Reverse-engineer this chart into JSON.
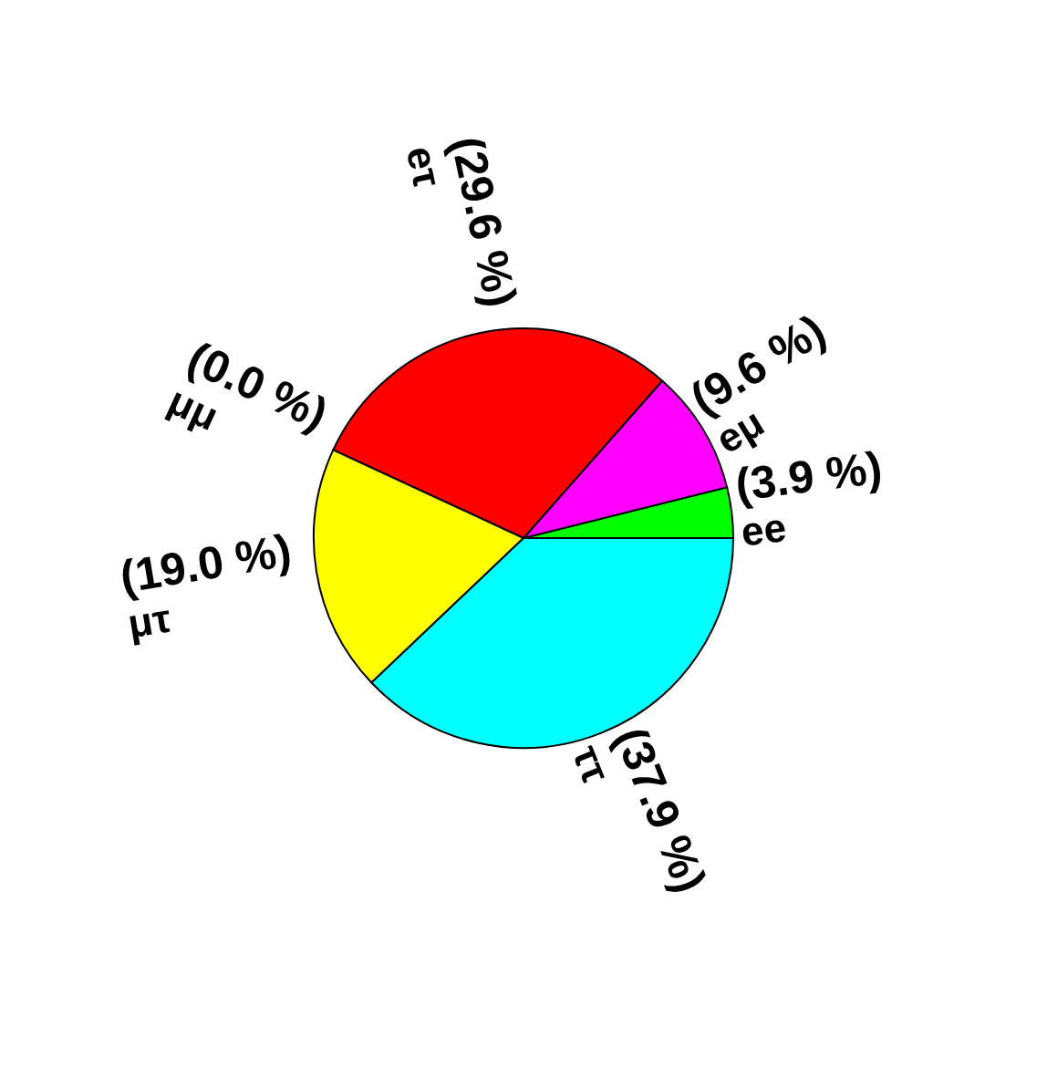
{
  "chart_data": {
    "type": "pie",
    "categories": [
      "ee",
      "eμ",
      "eτ",
      "μμ",
      "μτ",
      "ττ"
    ],
    "values": [
      3.9,
      9.6,
      29.6,
      0.0,
      19.0,
      37.9
    ],
    "colors": [
      "#00ff00",
      "#ff00ff",
      "#ff0000",
      "#0000ff",
      "#ffff00",
      "#00ffff"
    ],
    "value_labels": [
      "(3.9 %)",
      "(9.6 %)",
      "(29.6 %)",
      "(0.0 %)",
      "(19.0 %)",
      "(37.9 %)"
    ]
  }
}
